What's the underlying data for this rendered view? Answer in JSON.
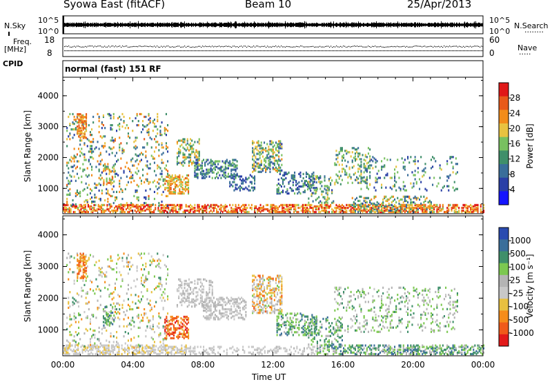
{
  "header": {
    "station": "Syowa East (fitACF)",
    "beam": "Beam 10",
    "date": "25/Apr/2013"
  },
  "noise_panel": {
    "left_label": "N.Sky",
    "right_label": "N.Search",
    "right_dots": "........",
    "ticks_left": [
      "10^5",
      "10^0"
    ],
    "ticks_right": [
      "10^5",
      "10^0"
    ]
  },
  "freq_panel": {
    "left_label_line1": "Freq.",
    "left_label_line2": "[MHz]",
    "right_label": "Nave",
    "right_dots": ".....",
    "ticks_left": [
      "18",
      "8"
    ],
    "ticks_right": [
      "60",
      "0"
    ]
  },
  "cpid": {
    "label": "CPID",
    "value": "normal (fast) 151 RF"
  },
  "colors": {
    "power_scale": [
      "#1515ff",
      "#2a3fa6",
      "#3a6e9a",
      "#3f8f6a",
      "#78c060",
      "#e8c240",
      "#f28c1a",
      "#e85a1a",
      "#e01818"
    ],
    "velocity_scale": [
      "#e21a1a",
      "#f05a1a",
      "#f58c1a",
      "#e8c040",
      "#c8c8c8",
      "#b4b4b4",
      "#7cc850",
      "#3f8f6a",
      "#3a6e9a",
      "#2a4bb0"
    ]
  },
  "chart_data": [
    {
      "type": "heatmap",
      "name": "power",
      "ylabel": "Slant Range [km]",
      "yticks": [
        "1000",
        "2000",
        "3000",
        "4000"
      ],
      "ylim": [
        180,
        4600
      ],
      "xticks": [
        "00:00",
        "04:00",
        "08:00",
        "12:00",
        "16:00",
        "20:00",
        "00:00"
      ],
      "xlim_hours": [
        0,
        24
      ],
      "colorbar_label": "Power [dB]",
      "colorbar_ticks": [
        "4",
        "8",
        "12",
        "16",
        "20",
        "24",
        "28"
      ],
      "colorbar_range": [
        0,
        30
      ],
      "regions": [
        {
          "t": [
            0.0,
            24.0
          ],
          "r": [
            200,
            450
          ],
          "v": [
            16,
            30
          ],
          "d": 0.55
        },
        {
          "t": [
            0.2,
            6.0
          ],
          "r": [
            400,
            3400
          ],
          "v": [
            4,
            24
          ],
          "d": 0.12
        },
        {
          "t": [
            0.8,
            1.3
          ],
          "r": [
            2600,
            3400
          ],
          "v": [
            18,
            26
          ],
          "d": 0.5
        },
        {
          "t": [
            2.3,
            2.9
          ],
          "r": [
            1100,
            1700
          ],
          "v": [
            14,
            24
          ],
          "d": 0.35
        },
        {
          "t": [
            5.8,
            7.2
          ],
          "r": [
            800,
            1400
          ],
          "v": [
            14,
            26
          ],
          "d": 0.45
        },
        {
          "t": [
            6.5,
            7.8
          ],
          "r": [
            1700,
            2600
          ],
          "v": [
            8,
            22
          ],
          "d": 0.35
        },
        {
          "t": [
            7.5,
            10.0
          ],
          "r": [
            1300,
            1900
          ],
          "v": [
            4,
            16
          ],
          "d": 0.35
        },
        {
          "t": [
            9.5,
            11.0
          ],
          "r": [
            900,
            1400
          ],
          "v": [
            4,
            12
          ],
          "d": 0.3
        },
        {
          "t": [
            10.8,
            12.5
          ],
          "r": [
            1500,
            2500
          ],
          "v": [
            6,
            22
          ],
          "d": 0.4
        },
        {
          "t": [
            12.2,
            14.5
          ],
          "r": [
            800,
            1500
          ],
          "v": [
            4,
            14
          ],
          "d": 0.3
        },
        {
          "t": [
            14.0,
            15.5
          ],
          "r": [
            500,
            1400
          ],
          "v": [
            6,
            18
          ],
          "d": 0.25
        },
        {
          "t": [
            15.5,
            17.5
          ],
          "r": [
            1100,
            2300
          ],
          "v": [
            8,
            20
          ],
          "d": 0.18
        },
        {
          "t": [
            17.0,
            22.5
          ],
          "r": [
            900,
            2000
          ],
          "v": [
            4,
            18
          ],
          "d": 0.12
        },
        {
          "t": [
            16.5,
            21.0
          ],
          "r": [
            200,
            700
          ],
          "v": [
            6,
            22
          ],
          "d": 0.25
        }
      ]
    },
    {
      "type": "heatmap",
      "name": "velocity",
      "ylabel": "Slant Range [km]",
      "yticks": [
        "1000",
        "2000",
        "3000",
        "4000"
      ],
      "ylim": [
        180,
        4600
      ],
      "xticks": [
        "00:00",
        "04:00",
        "08:00",
        "12:00",
        "16:00",
        "20:00",
        "00:00"
      ],
      "xlabel": "Time UT",
      "xlim_hours": [
        0,
        24
      ],
      "colorbar_label": "Velocity [m s⁻¹]",
      "colorbar_ticks": [
        "1000",
        "500",
        "100",
        "25",
        "-25",
        "-100",
        "-500",
        "-1000"
      ],
      "colorbar_range": [
        -1200,
        1200
      ],
      "regions": [
        {
          "t": [
            0.0,
            7.0
          ],
          "r": [
            200,
            500
          ],
          "v": [
            -300,
            -60
          ],
          "d": 0.45
        },
        {
          "t": [
            7.0,
            14.5
          ],
          "r": [
            200,
            450
          ],
          "v": [
            -150,
            20
          ],
          "d": 0.3
        },
        {
          "t": [
            14.5,
            24.0
          ],
          "r": [
            200,
            500
          ],
          "v": [
            50,
            900
          ],
          "d": 0.45
        },
        {
          "t": [
            0.2,
            6.0
          ],
          "r": [
            400,
            3400
          ],
          "v": [
            -600,
            600
          ],
          "d": 0.1
        },
        {
          "t": [
            0.8,
            1.3
          ],
          "r": [
            2600,
            3400
          ],
          "v": [
            -900,
            -300
          ],
          "d": 0.45
        },
        {
          "t": [
            2.3,
            2.9
          ],
          "r": [
            1100,
            1700
          ],
          "v": [
            100,
            900
          ],
          "d": 0.3
        },
        {
          "t": [
            5.8,
            7.2
          ],
          "r": [
            700,
            1400
          ],
          "v": [
            -1100,
            -400
          ],
          "d": 0.45
        },
        {
          "t": [
            6.5,
            8.5
          ],
          "r": [
            1700,
            2600
          ],
          "v": [
            -40,
            40
          ],
          "d": 0.35
        },
        {
          "t": [
            8.0,
            10.5
          ],
          "r": [
            1300,
            2000
          ],
          "v": [
            -60,
            60
          ],
          "d": 0.35
        },
        {
          "t": [
            10.8,
            12.5
          ],
          "r": [
            1500,
            2700
          ],
          "v": [
            -800,
            300
          ],
          "d": 0.35
        },
        {
          "t": [
            12.2,
            14.5
          ],
          "r": [
            800,
            1500
          ],
          "v": [
            100,
            900
          ],
          "d": 0.3
        },
        {
          "t": [
            14.0,
            16.0
          ],
          "r": [
            500,
            1400
          ],
          "v": [
            100,
            800
          ],
          "d": 0.25
        },
        {
          "t": [
            15.5,
            22.5
          ],
          "r": [
            900,
            2300
          ],
          "v": [
            -50,
            600
          ],
          "d": 0.14
        }
      ]
    }
  ]
}
